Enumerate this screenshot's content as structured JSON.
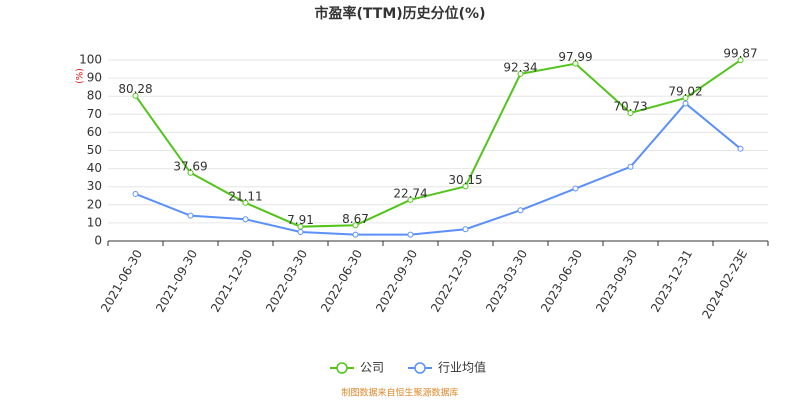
{
  "chart_data": {
    "type": "line",
    "title": "市盈率(TTM)历史分位(%)",
    "y_unit": "(%)",
    "categories": [
      "2021-06-30",
      "2021-09-30",
      "2021-12-30",
      "2022-03-30",
      "2022-06-30",
      "2022-09-30",
      "2022-12-30",
      "2023-03-30",
      "2023-06-30",
      "2023-09-30",
      "2023-12-31",
      "2024-02-23E"
    ],
    "series": [
      {
        "name": "公司",
        "color": "#52c41a",
        "values": [
          80.28,
          37.69,
          21.11,
          7.91,
          8.67,
          22.74,
          30.15,
          92.34,
          97.99,
          70.73,
          79.02,
          99.87
        ],
        "show_labels": true
      },
      {
        "name": "行业均值",
        "color": "#5b8ff9",
        "values": [
          26,
          14,
          12,
          5,
          3.5,
          3.5,
          6.5,
          17,
          29,
          41,
          76,
          51
        ],
        "show_labels": false
      }
    ],
    "ylim": [
      0,
      100
    ],
    "yticks": [
      0,
      10,
      20,
      30,
      40,
      50,
      60,
      70,
      80,
      90,
      100
    ],
    "grid": true,
    "source": "制图数据来自恒生聚源数据库"
  }
}
